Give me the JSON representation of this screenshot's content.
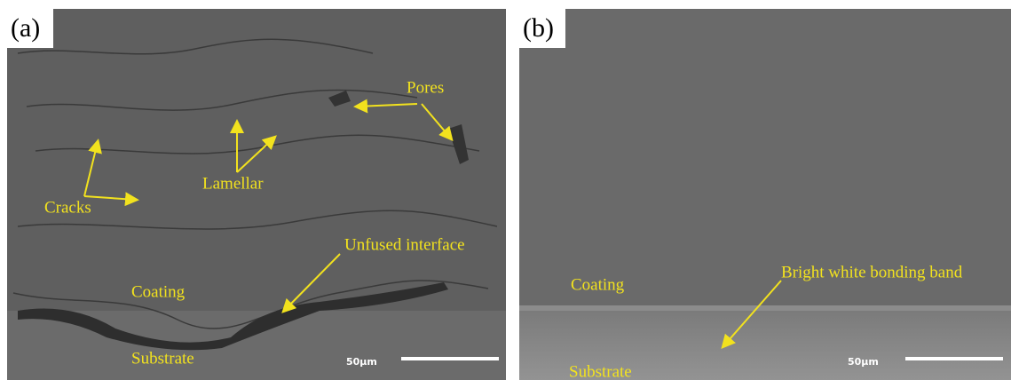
{
  "panels": [
    {
      "label": "(a)",
      "annotations": {
        "pores": "Pores",
        "lamellar": "Lamellar",
        "cracks": "Cracks",
        "unfused": "Unfused interface",
        "coating": "Coating",
        "substrate": "Substrate"
      },
      "scale_bar": "50μm"
    },
    {
      "label": "(b)",
      "annotations": {
        "coating": "Coating",
        "band": "Bright white bonding band",
        "substrate": "Substrate"
      },
      "scale_bar": "50μm"
    }
  ]
}
